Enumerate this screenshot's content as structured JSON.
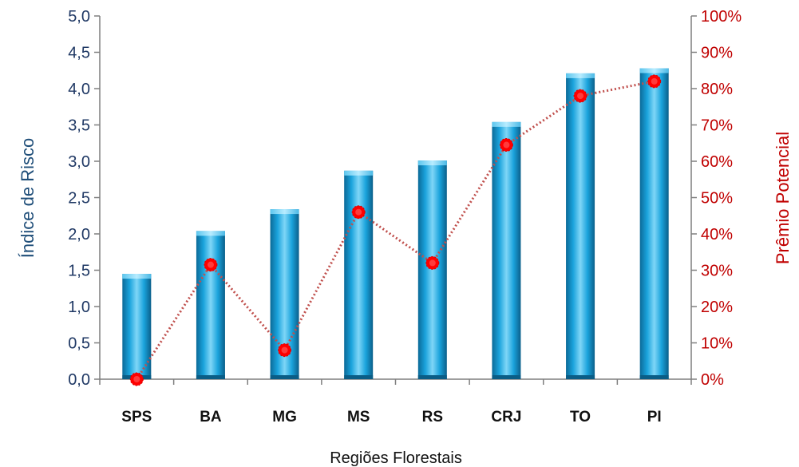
{
  "chart_data": {
    "type": "bar",
    "categories": [
      "SPS",
      "BA",
      "MG",
      "MS",
      "RS",
      "CRJ",
      "TO",
      "PI"
    ],
    "series": [
      {
        "type": "bar",
        "axis": "left",
        "values": [
          1.45,
          2.04,
          2.34,
          2.87,
          3.01,
          3.54,
          4.21,
          4.28
        ]
      },
      {
        "type": "line",
        "axis": "right",
        "values": [
          0.0,
          31.5,
          8.0,
          46.0,
          32.0,
          64.5,
          78.0,
          82.0
        ]
      }
    ],
    "xlabel": "Regiões Florestais",
    "ylabel": "Índice de Risco",
    "ylabel_right": "Prêmio Potencial",
    "ylim": [
      0,
      5
    ],
    "ylim_right": [
      0,
      100
    ],
    "yticks": [
      "0,0",
      "0,5",
      "1,0",
      "1,5",
      "2,0",
      "2,5",
      "3,0",
      "3,5",
      "4,0",
      "4,5",
      "5,0"
    ],
    "yticks_right": [
      "0%",
      "10%",
      "20%",
      "30%",
      "40%",
      "50%",
      "60%",
      "70%",
      "80%",
      "90%",
      "100%"
    ],
    "grid": false,
    "legend": "none",
    "colors": {
      "bar": "#1aa3dc",
      "bar_dark": "#0a6f9e",
      "bar_light": "#7fd4f5",
      "line": "#c0504d",
      "marker": "#ff0000",
      "left_axis_text": "#1f3864",
      "right_axis_text": "#c00000"
    }
  }
}
